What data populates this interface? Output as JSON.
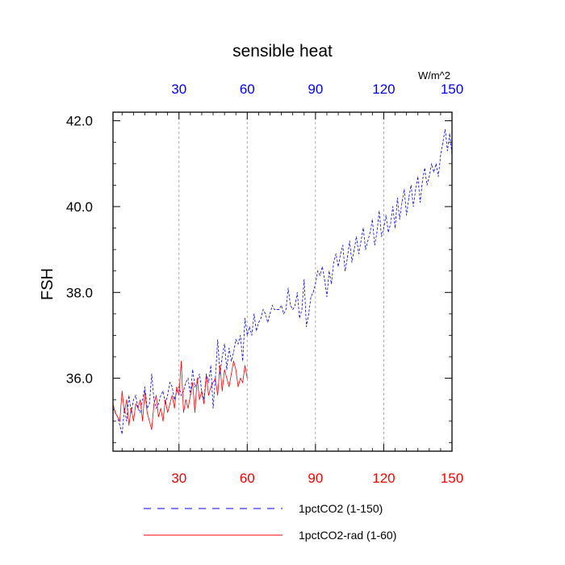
{
  "chart_data": {
    "type": "line",
    "title": "sensible heat",
    "ylabel": "FSH",
    "top_axis_units": "W/m^2",
    "xlim": [
      1,
      150
    ],
    "ylim": [
      34.3,
      42.2
    ],
    "x_ticks": [
      30,
      60,
      90,
      120,
      150
    ],
    "y_ticks": [
      36.0,
      38.0,
      40.0,
      42.0
    ],
    "y_tick_labels": [
      "36.0",
      "38.0",
      "40.0",
      "42.0"
    ],
    "bottom_tick_color": "#ff0000",
    "top_tick_color": "#0000ff",
    "grid_x": true,
    "legend_position": "bottom",
    "series": [
      {
        "name": "1pctCO2 (1-150)",
        "color": "#0000ff",
        "style": "dashed",
        "x_start": 1,
        "values": [
          35.3,
          35.2,
          35.1,
          34.9,
          34.7,
          35.3,
          35.0,
          35.6,
          35.2,
          35.5,
          35.6,
          35.3,
          35.2,
          35.5,
          35.8,
          35.3,
          35.4,
          36.1,
          35.5,
          35.3,
          35.4,
          35.6,
          35.7,
          35.4,
          35.6,
          35.9,
          35.8,
          35.5,
          35.7,
          35.8,
          35.6,
          35.7,
          35.9,
          36.0,
          35.6,
          36.2,
          35.8,
          35.9,
          36.1,
          35.7,
          35.5,
          36.1,
          35.9,
          36.3,
          35.3,
          36.0,
          36.9,
          36.1,
          36.5,
          36.8,
          36.2,
          36.7,
          36.4,
          36.6,
          36.9,
          36.8,
          37.0,
          36.4,
          37.4,
          37.0,
          37.2,
          37.0,
          37.5,
          37.1,
          37.3,
          37.4,
          37.6,
          37.5,
          37.3,
          37.5,
          37.7,
          37.6,
          37.6,
          37.6,
          37.7,
          37.5,
          37.6,
          38.1,
          37.7,
          37.6,
          37.7,
          38.0,
          37.4,
          37.6,
          38.3,
          37.2,
          37.5,
          37.9,
          38.0,
          38.2,
          38.5,
          38.4,
          38.6,
          38.3,
          37.9,
          38.5,
          38.2,
          38.7,
          38.9,
          38.6,
          38.9,
          39.1,
          38.5,
          38.8,
          39.2,
          38.7,
          39.0,
          39.3,
          38.9,
          39.2,
          39.5,
          39.0,
          39.2,
          39.4,
          39.7,
          39.1,
          39.4,
          39.9,
          39.3,
          39.5,
          39.8,
          39.4,
          39.6,
          40.0,
          39.5,
          40.2,
          39.7,
          40.1,
          40.4,
          39.8,
          40.2,
          40.5,
          40.0,
          40.4,
          40.7,
          40.1,
          40.6,
          40.9,
          40.5,
          40.7,
          41.0,
          40.8,
          41.0,
          40.7,
          41.2,
          41.5,
          41.8,
          41.3,
          41.7,
          41.2
        ]
      },
      {
        "name": "1pctCO2-rad (1-60)",
        "color": "#ff0000",
        "style": "solid",
        "x_start": 1,
        "values": [
          35.4,
          35.2,
          35.1,
          35.0,
          35.7,
          35.2,
          35.5,
          34.9,
          35.3,
          35.0,
          35.4,
          35.3,
          35.5,
          35.0,
          35.7,
          35.2,
          35.0,
          34.8,
          35.4,
          35.6,
          35.1,
          35.3,
          35.0,
          35.5,
          35.2,
          35.4,
          35.6,
          35.3,
          35.8,
          35.6,
          36.4,
          35.2,
          35.5,
          35.3,
          35.6,
          35.9,
          35.2,
          36.0,
          35.5,
          35.7,
          35.4,
          36.1,
          35.6,
          35.8,
          35.9,
          36.0,
          35.6,
          36.3,
          35.7,
          36.2,
          36.0,
          35.8,
          36.1,
          36.4,
          36.2,
          35.8,
          36.0,
          35.9,
          36.3,
          36.0
        ]
      }
    ]
  }
}
